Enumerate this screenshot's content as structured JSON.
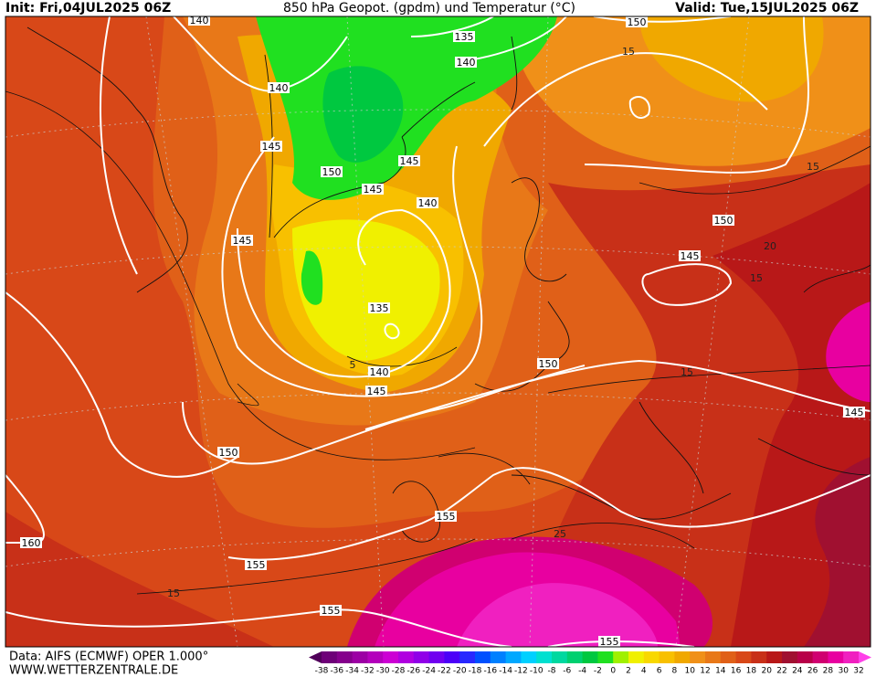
{
  "header": {
    "init": "Init: Fri,04JUL2025 06Z",
    "title": "850 hPa Geopot. (gpdm) und Temperatur (°C)",
    "valid": "Valid: Tue,15JUL2025 06Z"
  },
  "map": {
    "geopotential_labels": [
      140,
      135,
      150,
      140,
      140,
      145,
      150,
      145,
      145,
      140,
      150,
      145,
      145,
      135,
      140,
      150,
      145,
      145,
      150,
      155,
      160,
      155,
      155,
      155
    ],
    "temperature_labels": [
      15,
      15,
      20,
      15,
      15,
      25,
      15,
      5
    ]
  },
  "legend": {
    "ticks": [
      -38,
      -36,
      -34,
      -32,
      -30,
      -28,
      -26,
      -24,
      -22,
      -20,
      -18,
      -16,
      -14,
      -12,
      -10,
      -8,
      -6,
      -4,
      -2,
      0,
      2,
      4,
      6,
      8,
      10,
      12,
      14,
      16,
      18,
      20,
      22,
      24,
      26,
      28,
      30,
      32
    ],
    "colors": [
      "#50005a",
      "#6e0078",
      "#85008c",
      "#9c00a4",
      "#b400bc",
      "#cc00d4",
      "#b000e0",
      "#9000e8",
      "#7000f0",
      "#4c00f8",
      "#2828ff",
      "#0050ff",
      "#0080ff",
      "#00a8ff",
      "#00d0ff",
      "#00e0d0",
      "#00d8a0",
      "#00d070",
      "#00c840",
      "#20e020",
      "#a0f000",
      "#f0f000",
      "#f8d800",
      "#f8c000",
      "#f0a800",
      "#f09018",
      "#e87818",
      "#e06018",
      "#d84818",
      "#c83018",
      "#b81818",
      "#a01030",
      "#b80048",
      "#d00070",
      "#e800a0",
      "#f020c0",
      "#ff40e8"
    ]
  },
  "footer": {
    "source": "Data: AIFS (ECMWF) OPER 1.000°",
    "site": "WWW.WETTERZENTRALE.DE"
  }
}
